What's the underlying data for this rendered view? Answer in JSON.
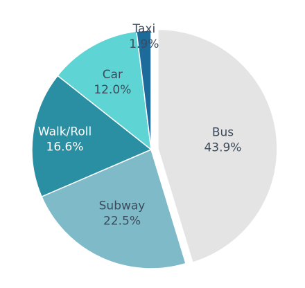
{
  "chart_data": {
    "type": "pie",
    "slices": [
      {
        "name": "Bus",
        "value": 43.9,
        "label": "43.9%",
        "color": "#e4e4e4",
        "text_color": "#3d4a5c",
        "exploded": true
      },
      {
        "name": "Subway",
        "value": 22.5,
        "label": "22.5%",
        "color": "#7fbac8",
        "text_color": "#3d4a5c",
        "exploded": false
      },
      {
        "name": "Walk/Roll",
        "value": 16.6,
        "label": "16.6%",
        "color": "#2a8fa2",
        "text_color": "#ffffff",
        "exploded": false
      },
      {
        "name": "Car",
        "value": 12.0,
        "label": "12.0%",
        "color": "#5fd4d4",
        "text_color": "#3d4a5c",
        "exploded": false
      },
      {
        "name": "Taxi",
        "value": 1.9,
        "label": "1.9%",
        "color": "#1c6b9a",
        "text_color": "#3d4a5c",
        "exploded": false
      }
    ]
  }
}
